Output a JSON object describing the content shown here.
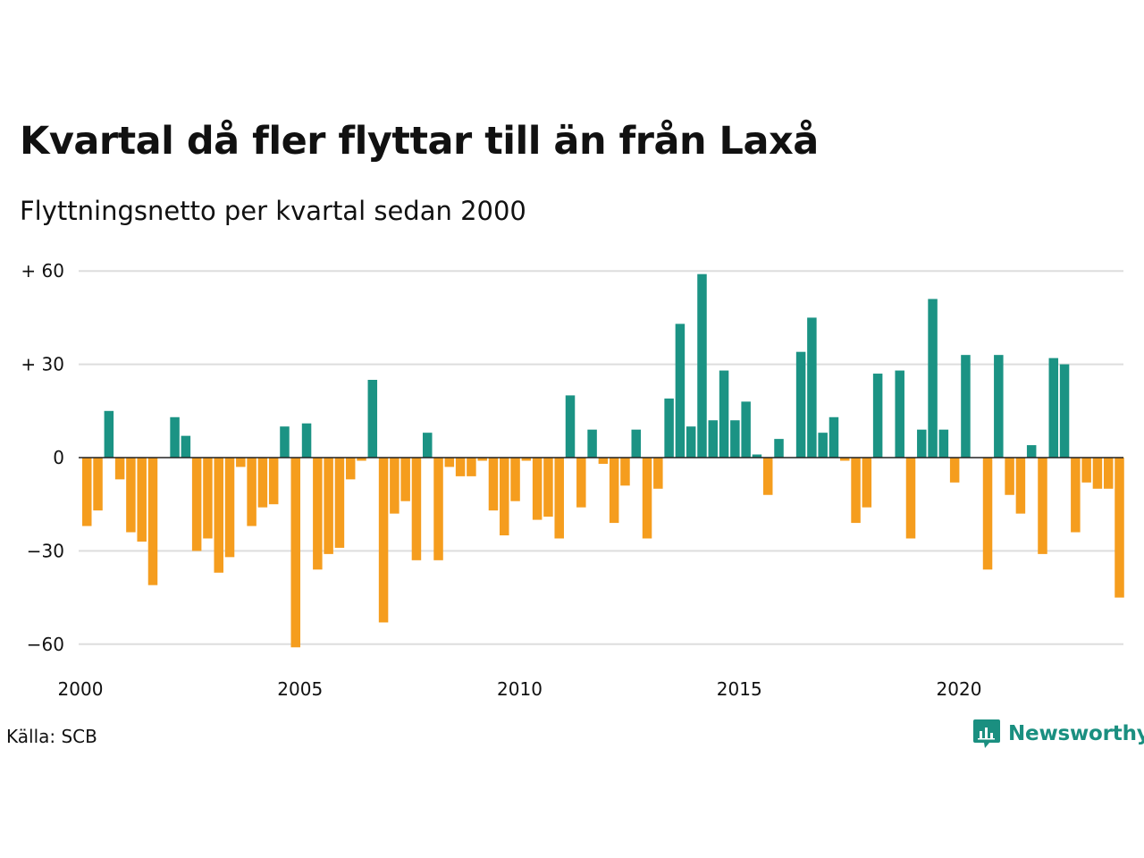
{
  "title": "Kvartal då fler flyttar till än från Laxå",
  "subtitle": "Flyttningsnetto per kvartal sedan 2000",
  "source": "Källa: SCB",
  "brand": {
    "name": "Newsworthy",
    "icon": "newsworthy-logo-icon",
    "color": "#1a8f80"
  },
  "colors": {
    "positive": "#1b9384",
    "negative": "#f59d1e",
    "grid": "#dddddd",
    "zero_line": "#222222"
  },
  "chart_data": {
    "type": "bar",
    "title": "Kvartal då fler flyttar till än från Laxå",
    "subtitle": "Flyttningsnetto per kvartal sedan 2000",
    "xlabel": "",
    "ylabel": "",
    "x_start": "2000 Q1",
    "x_end": "2023 Q4",
    "x_ticks": [
      "2000",
      "2005",
      "2010",
      "2015",
      "2020"
    ],
    "y_ticks": [
      60,
      30,
      0,
      -30,
      -60
    ],
    "y_tick_labels": [
      "+ 60",
      "+ 30",
      "0",
      "−30",
      "−60"
    ],
    "ylim": [
      -62,
      60
    ],
    "grid": true,
    "legend": "none",
    "categories": [
      "2000 Q1",
      "2000 Q2",
      "2000 Q3",
      "2000 Q4",
      "2001 Q1",
      "2001 Q2",
      "2001 Q3",
      "2001 Q4",
      "2002 Q1",
      "2002 Q2",
      "2002 Q3",
      "2002 Q4",
      "2003 Q1",
      "2003 Q2",
      "2003 Q3",
      "2003 Q4",
      "2004 Q1",
      "2004 Q2",
      "2004 Q3",
      "2004 Q4",
      "2005 Q1",
      "2005 Q2",
      "2005 Q3",
      "2005 Q4",
      "2006 Q1",
      "2006 Q2",
      "2006 Q3",
      "2006 Q4",
      "2007 Q1",
      "2007 Q2",
      "2007 Q3",
      "2007 Q4",
      "2008 Q1",
      "2008 Q2",
      "2008 Q3",
      "2008 Q4",
      "2009 Q1",
      "2009 Q2",
      "2009 Q3",
      "2009 Q4",
      "2010 Q1",
      "2010 Q2",
      "2010 Q3",
      "2010 Q4",
      "2011 Q1",
      "2011 Q2",
      "2011 Q3",
      "2011 Q4",
      "2012 Q1",
      "2012 Q2",
      "2012 Q3",
      "2012 Q4",
      "2013 Q1",
      "2013 Q2",
      "2013 Q3",
      "2013 Q4",
      "2014 Q1",
      "2014 Q2",
      "2014 Q3",
      "2014 Q4",
      "2015 Q1",
      "2015 Q2",
      "2015 Q3",
      "2015 Q4",
      "2016 Q1",
      "2016 Q2",
      "2016 Q3",
      "2016 Q4",
      "2017 Q1",
      "2017 Q2",
      "2017 Q3",
      "2017 Q4",
      "2018 Q1",
      "2018 Q2",
      "2018 Q3",
      "2018 Q4",
      "2019 Q1",
      "2019 Q2",
      "2019 Q3",
      "2019 Q4",
      "2020 Q1",
      "2020 Q2",
      "2020 Q3",
      "2020 Q4",
      "2021 Q1",
      "2021 Q2",
      "2021 Q3",
      "2021 Q4",
      "2022 Q1",
      "2022 Q2",
      "2022 Q3",
      "2022 Q4",
      "2023 Q1",
      "2023 Q2",
      "2023 Q3",
      "2023 Q4"
    ],
    "values": [
      -22,
      -17,
      15,
      -7,
      -24,
      -27,
      -41,
      0,
      13,
      7,
      -30,
      -26,
      -37,
      -32,
      -3,
      -22,
      -16,
      -15,
      10,
      -61,
      11,
      -36,
      -31,
      -29,
      -7,
      -1,
      25,
      -53,
      -18,
      -14,
      -33,
      8,
      -33,
      -3,
      -6,
      -6,
      -1,
      -17,
      -25,
      -14,
      -1,
      -20,
      -19,
      -26,
      20,
      -16,
      9,
      -2,
      -21,
      -9,
      9,
      -26,
      -10,
      19,
      43,
      10,
      59,
      12,
      28,
      12,
      18,
      1,
      -12,
      6,
      0,
      34,
      45,
      8,
      13,
      -1,
      -21,
      -16,
      27,
      0,
      28,
      -26,
      9,
      51,
      9,
      -8,
      33,
      0,
      -36,
      33,
      -12,
      -18,
      4,
      -31,
      32,
      30,
      -24,
      -8,
      -10,
      -10,
      -45,
      0
    ]
  }
}
